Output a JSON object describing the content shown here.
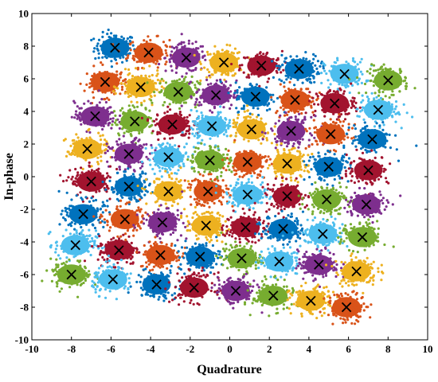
{
  "chart_data": {
    "type": "scatter",
    "title": "",
    "xlabel": "Quadrature",
    "ylabel": "In-phase",
    "xlim": [
      -10,
      10
    ],
    "ylim": [
      -10,
      10
    ],
    "xticks": [
      "-10",
      "-8",
      "-6",
      "-4",
      "-2",
      "0",
      "2",
      "4",
      "6",
      "8",
      "10"
    ],
    "yticks": [
      "-10",
      "-8",
      "-6",
      "-4",
      "-2",
      "0",
      "2",
      "4",
      "6",
      "8",
      "10"
    ],
    "grid": false,
    "legend": "none",
    "marker_symbol": "×",
    "palette": {
      "blue": "#0072BD",
      "orange": "#D95319",
      "yellow": "#EDB120",
      "purple": "#7E2F8E",
      "green": "#77AC30",
      "lightblue": "#4DBEEE",
      "red": "#A2142F"
    },
    "clusters": [
      {
        "x": -5.8,
        "y": 7.9,
        "color": "blue"
      },
      {
        "x": -4.1,
        "y": 7.6,
        "color": "orange"
      },
      {
        "x": -2.2,
        "y": 7.3,
        "color": "purple"
      },
      {
        "x": -0.3,
        "y": 7.0,
        "color": "yellow"
      },
      {
        "x": 1.6,
        "y": 6.8,
        "color": "red"
      },
      {
        "x": 3.5,
        "y": 6.6,
        "color": "blue"
      },
      {
        "x": 5.8,
        "y": 6.3,
        "color": "lightblue"
      },
      {
        "x": 8.0,
        "y": 5.9,
        "color": "green"
      },
      {
        "x": -6.3,
        "y": 5.8,
        "color": "orange"
      },
      {
        "x": -4.5,
        "y": 5.5,
        "color": "yellow"
      },
      {
        "x": -2.6,
        "y": 5.2,
        "color": "green"
      },
      {
        "x": -0.7,
        "y": 5.0,
        "color": "purple"
      },
      {
        "x": 1.3,
        "y": 4.9,
        "color": "blue"
      },
      {
        "x": 3.3,
        "y": 4.7,
        "color": "orange"
      },
      {
        "x": 5.3,
        "y": 4.5,
        "color": "red"
      },
      {
        "x": 7.5,
        "y": 4.1,
        "color": "lightblue"
      },
      {
        "x": -6.8,
        "y": 3.7,
        "color": "purple"
      },
      {
        "x": -4.8,
        "y": 3.4,
        "color": "green"
      },
      {
        "x": -2.9,
        "y": 3.2,
        "color": "red"
      },
      {
        "x": -0.9,
        "y": 3.1,
        "color": "lightblue"
      },
      {
        "x": 1.1,
        "y": 2.9,
        "color": "yellow"
      },
      {
        "x": 3.1,
        "y": 2.8,
        "color": "purple"
      },
      {
        "x": 5.1,
        "y": 2.6,
        "color": "orange"
      },
      {
        "x": 7.2,
        "y": 2.3,
        "color": "blue"
      },
      {
        "x": -7.2,
        "y": 1.7,
        "color": "yellow"
      },
      {
        "x": -5.1,
        "y": 1.4,
        "color": "purple"
      },
      {
        "x": -3.1,
        "y": 1.2,
        "color": "lightblue"
      },
      {
        "x": -1.0,
        "y": 1.0,
        "color": "green"
      },
      {
        "x": 0.9,
        "y": 0.9,
        "color": "orange"
      },
      {
        "x": 2.9,
        "y": 0.8,
        "color": "yellow"
      },
      {
        "x": 5.0,
        "y": 0.6,
        "color": "blue"
      },
      {
        "x": 7.0,
        "y": 0.4,
        "color": "red"
      },
      {
        "x": -7.0,
        "y": -0.3,
        "color": "red"
      },
      {
        "x": -5.1,
        "y": -0.6,
        "color": "blue"
      },
      {
        "x": -3.1,
        "y": -0.9,
        "color": "yellow"
      },
      {
        "x": -1.1,
        "y": -0.9,
        "color": "orange"
      },
      {
        "x": 0.9,
        "y": -1.1,
        "color": "lightblue"
      },
      {
        "x": 2.9,
        "y": -1.2,
        "color": "red"
      },
      {
        "x": 4.9,
        "y": -1.4,
        "color": "green"
      },
      {
        "x": 6.9,
        "y": -1.7,
        "color": "purple"
      },
      {
        "x": -7.4,
        "y": -2.3,
        "color": "blue"
      },
      {
        "x": -5.3,
        "y": -2.6,
        "color": "orange"
      },
      {
        "x": -3.4,
        "y": -2.8,
        "color": "purple"
      },
      {
        "x": -1.2,
        "y": -3.0,
        "color": "yellow"
      },
      {
        "x": 0.8,
        "y": -3.1,
        "color": "red"
      },
      {
        "x": 2.7,
        "y": -3.2,
        "color": "blue"
      },
      {
        "x": 4.7,
        "y": -3.5,
        "color": "lightblue"
      },
      {
        "x": 6.7,
        "y": -3.7,
        "color": "green"
      },
      {
        "x": -7.8,
        "y": -4.2,
        "color": "lightblue"
      },
      {
        "x": -5.6,
        "y": -4.5,
        "color": "red"
      },
      {
        "x": -3.5,
        "y": -4.8,
        "color": "orange"
      },
      {
        "x": -1.5,
        "y": -4.9,
        "color": "blue"
      },
      {
        "x": 0.6,
        "y": -5.0,
        "color": "green"
      },
      {
        "x": 2.5,
        "y": -5.2,
        "color": "lightblue"
      },
      {
        "x": 4.5,
        "y": -5.4,
        "color": "purple"
      },
      {
        "x": 6.4,
        "y": -5.8,
        "color": "yellow"
      },
      {
        "x": -8.0,
        "y": -6.0,
        "color": "green"
      },
      {
        "x": -5.9,
        "y": -6.3,
        "color": "lightblue"
      },
      {
        "x": -3.7,
        "y": -6.6,
        "color": "blue"
      },
      {
        "x": -1.8,
        "y": -6.8,
        "color": "red"
      },
      {
        "x": 0.3,
        "y": -7.0,
        "color": "purple"
      },
      {
        "x": 2.2,
        "y": -7.3,
        "color": "green"
      },
      {
        "x": 4.1,
        "y": -7.6,
        "color": "yellow"
      },
      {
        "x": 5.9,
        "y": -8.0,
        "color": "orange"
      }
    ]
  }
}
